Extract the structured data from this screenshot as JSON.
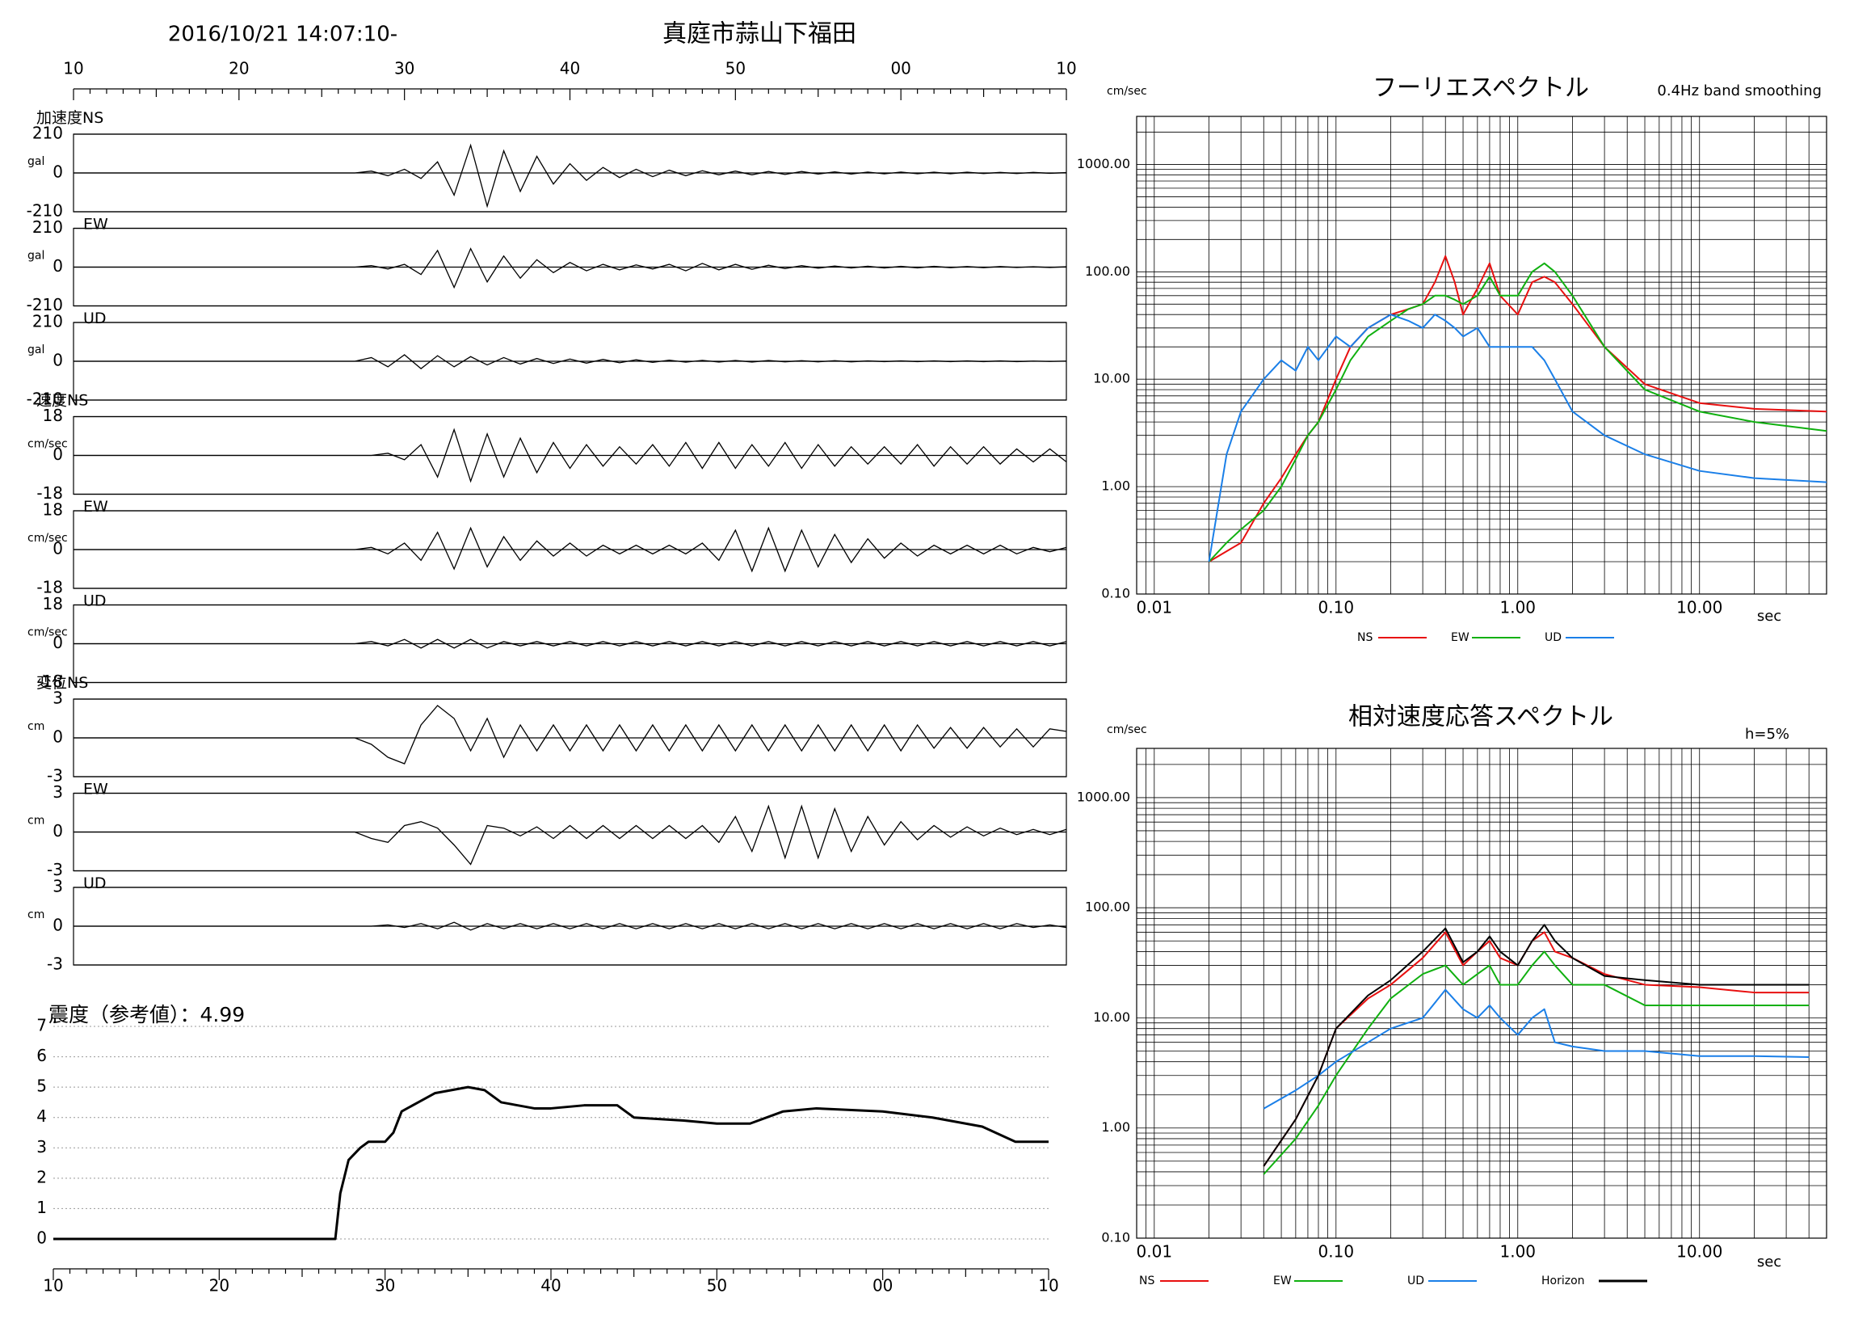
{
  "header": {
    "datetime": "2016/10/21 14:07:10-",
    "station": "真庭市蒜山下福田"
  },
  "chart_data": [
    {
      "type": "waveform",
      "color": "#000000",
      "x": [
        10,
        27,
        28,
        29,
        30,
        31,
        32,
        33,
        34,
        35,
        36,
        37,
        38,
        39,
        40,
        41,
        42,
        43,
        44,
        45,
        46,
        47,
        48,
        49,
        50,
        51,
        52,
        53,
        54,
        55,
        56,
        57,
        58,
        59,
        60,
        61,
        62,
        63,
        64,
        65,
        66,
        67,
        68,
        69,
        70
      ],
      "xlim": [
        10,
        70
      ],
      "xticks": [
        10,
        20,
        30,
        40,
        50,
        {
          "value": 60,
          "label": "00"
        },
        {
          "value": 70,
          "label": "10"
        }
      ],
      "groups": [
        {
          "quantity": "加速度",
          "unit": "gal",
          "ylim": [
            -210,
            210
          ],
          "yticks": [
            -210,
            0,
            210
          ],
          "components": [
            {
              "name": "NS",
              "values": [
                0,
                0,
                10,
                -15,
                20,
                -30,
                60,
                -120,
                150,
                -180,
                120,
                -100,
                90,
                -60,
                50,
                -40,
                30,
                -25,
                20,
                -20,
                15,
                -15,
                12,
                -10,
                10,
                -10,
                8,
                -8,
                8,
                -6,
                6,
                -6,
                5,
                -5,
                5,
                -4,
                4,
                -4,
                4,
                -3,
                3,
                -3,
                3,
                -2,
                2
              ]
            },
            {
              "name": "EW",
              "values": [
                0,
                0,
                8,
                -10,
                15,
                -40,
                90,
                -110,
                100,
                -80,
                60,
                -60,
                40,
                -30,
                25,
                -20,
                15,
                -15,
                12,
                -10,
                15,
                -20,
                20,
                -15,
                15,
                -12,
                10,
                -8,
                8,
                -6,
                6,
                -5,
                5,
                -5,
                4,
                -4,
                4,
                -3,
                3,
                -3,
                3,
                -2,
                2,
                -2,
                2
              ]
            },
            {
              "name": "UD",
              "values": [
                0,
                0,
                20,
                -30,
                35,
                -40,
                30,
                -30,
                25,
                -20,
                20,
                -15,
                15,
                -12,
                12,
                -10,
                10,
                -8,
                8,
                -6,
                6,
                -5,
                5,
                -4,
                4,
                -4,
                4,
                -3,
                3,
                -3,
                3,
                -3,
                2,
                -2,
                2,
                -2,
                2,
                -2,
                2,
                -2,
                2,
                -2,
                1,
                -1,
                1
              ]
            }
          ]
        },
        {
          "quantity": "速度",
          "unit": "cm/sec",
          "ylim": [
            -18,
            18
          ],
          "yticks": [
            -18,
            0,
            18
          ],
          "components": [
            {
              "name": "NS",
              "values": [
                0,
                0,
                0,
                1,
                -2,
                5,
                -10,
                12,
                -12,
                10,
                -10,
                8,
                -8,
                6,
                -6,
                5,
                -5,
                4,
                -4,
                5,
                -5,
                6,
                -6,
                6,
                -6,
                5,
                -5,
                6,
                -6,
                5,
                -5,
                4,
                -4,
                4,
                -4,
                5,
                -5,
                4,
                -4,
                4,
                -4,
                3,
                -3,
                3,
                -3
              ]
            },
            {
              "name": "EW",
              "values": [
                0,
                0,
                1,
                -2,
                3,
                -5,
                8,
                -9,
                10,
                -8,
                6,
                -5,
                4,
                -3,
                3,
                -3,
                2,
                -2,
                2,
                -2,
                2,
                -2,
                3,
                -5,
                9,
                -10,
                10,
                -10,
                9,
                -8,
                7,
                -6,
                5,
                -4,
                3,
                -3,
                2,
                -2,
                2,
                -2,
                2,
                -2,
                1,
                -1,
                1
              ]
            },
            {
              "name": "UD",
              "values": [
                0,
                0,
                1,
                -1,
                2,
                -2,
                2,
                -2,
                2,
                -2,
                1,
                -1,
                1,
                -1,
                1,
                -1,
                1,
                -1,
                1,
                -1,
                1,
                -1,
                1,
                -1,
                1,
                -1,
                1,
                -1,
                1,
                -1,
                1,
                -1,
                1,
                -1,
                1,
                -1,
                1,
                -1,
                1,
                -1,
                1,
                -1,
                1,
                -1,
                1
              ]
            }
          ]
        },
        {
          "quantity": "変位",
          "unit": "cm",
          "ylim": [
            -3,
            3
          ],
          "yticks": [
            -3,
            0,
            3
          ],
          "components": [
            {
              "name": "NS",
              "values": [
                0,
                0,
                -0.5,
                -1.5,
                -2,
                1,
                2.5,
                1.5,
                -1,
                1.5,
                -1.5,
                1,
                -1,
                1,
                -1,
                1,
                -1,
                1,
                -1,
                1,
                -1,
                1,
                -1,
                1,
                -1,
                1,
                -1,
                1,
                -1,
                1,
                -1,
                1,
                -1,
                1,
                -1,
                1,
                -0.8,
                0.8,
                -0.8,
                0.8,
                -0.7,
                0.7,
                -0.7,
                0.7,
                0.5
              ]
            },
            {
              "name": "EW",
              "values": [
                0,
                0,
                -0.5,
                -0.8,
                0.5,
                0.8,
                0.3,
                -1,
                -2.5,
                0.5,
                0.3,
                -0.3,
                0.4,
                -0.5,
                0.5,
                -0.5,
                0.5,
                -0.5,
                0.5,
                -0.5,
                0.5,
                -0.5,
                0.5,
                -0.8,
                1.2,
                -1.5,
                2,
                -2,
                2,
                -2,
                1.8,
                -1.5,
                1.2,
                -1,
                0.8,
                -0.6,
                0.5,
                -0.4,
                0.4,
                -0.3,
                0.3,
                -0.2,
                0.2,
                -0.2,
                0.2
              ]
            },
            {
              "name": "UD",
              "values": [
                0,
                0,
                0,
                0.1,
                -0.1,
                0.2,
                -0.2,
                0.3,
                -0.3,
                0.2,
                -0.2,
                0.2,
                -0.2,
                0.2,
                -0.2,
                0.2,
                -0.2,
                0.2,
                -0.2,
                0.2,
                -0.2,
                0.2,
                -0.2,
                0.2,
                -0.2,
                0.2,
                -0.2,
                0.2,
                -0.2,
                0.2,
                -0.2,
                0.2,
                -0.2,
                0.2,
                -0.2,
                0.2,
                -0.2,
                0.2,
                -0.2,
                0.2,
                -0.2,
                0.2,
                -0.1,
                0.1,
                -0.1
              ]
            }
          ]
        }
      ]
    },
    {
      "type": "line",
      "title": "震度（参考値）：4.99",
      "color": "#000000",
      "grid": "dotted",
      "x": [
        10,
        27,
        27.3,
        27.8,
        28.5,
        29,
        30,
        30.5,
        31,
        32,
        33,
        34,
        35,
        36,
        37,
        38,
        39,
        40,
        42,
        44,
        45,
        48,
        50,
        52,
        54,
        56,
        60,
        63,
        66,
        68,
        70
      ],
      "values": [
        0,
        0,
        1.5,
        2.6,
        3,
        3.2,
        3.2,
        3.5,
        4.2,
        4.5,
        4.8,
        4.9,
        5,
        4.9,
        4.5,
        4.4,
        4.3,
        4.3,
        4.4,
        4.4,
        4,
        3.9,
        3.8,
        3.8,
        4.2,
        4.3,
        4.2,
        4,
        3.7,
        3.2,
        3.2
      ],
      "xlim": [
        10,
        70
      ],
      "xticks": [
        10,
        20,
        30,
        40,
        50,
        {
          "value": 60,
          "label": "00"
        },
        {
          "value": 70,
          "label": "10"
        }
      ],
      "ylim": [
        0,
        7
      ],
      "yticks": [
        0,
        1,
        2,
        3,
        4,
        5,
        6,
        7
      ]
    },
    {
      "type": "line",
      "title": "フーリエスペクトル",
      "subtitle": "0.4Hz band smoothing",
      "ylabel": "cm/sec",
      "xlabel": "sec",
      "log_x": true,
      "log_y": true,
      "grid": "solid",
      "frame": true,
      "legend": "bottom",
      "xlim": [
        0.008,
        50
      ],
      "ylim": [
        0.1,
        2800
      ],
      "xticks": [
        0.01,
        {
          "value": 0.1,
          "label": "0.10"
        },
        {
          "value": 1,
          "label": "1.00"
        },
        {
          "value": 10,
          "label": "10.00"
        }
      ],
      "yticks": [
        {
          "value": 0.1,
          "label": "0.10"
        },
        {
          "value": 1,
          "label": "1.00"
        },
        {
          "value": 10,
          "label": "10.00"
        },
        {
          "value": 100,
          "label": "100.00"
        },
        {
          "value": 1000,
          "label": "1000.00"
        }
      ],
      "x": [
        0.02,
        0.025,
        0.03,
        0.04,
        0.05,
        0.06,
        0.07,
        0.08,
        0.1,
        0.12,
        0.15,
        0.2,
        0.25,
        0.3,
        0.35,
        0.4,
        0.45,
        0.5,
        0.6,
        0.7,
        0.8,
        1,
        1.2,
        1.4,
        1.6,
        2,
        3,
        5,
        10,
        20,
        50
      ],
      "series": [
        {
          "name": "NS",
          "color": "#e81010",
          "values": [
            0.2,
            0.25,
            0.3,
            0.7,
            1.2,
            2,
            3,
            4,
            10,
            20,
            30,
            40,
            45,
            50,
            80,
            140,
            80,
            40,
            70,
            120,
            60,
            40,
            80,
            90,
            80,
            50,
            20,
            9,
            6,
            5.3,
            5
          ]
        },
        {
          "name": "EW",
          "color": "#10b010",
          "values": [
            0.2,
            0.3,
            0.4,
            0.6,
            1,
            1.8,
            3,
            4,
            8,
            15,
            25,
            35,
            45,
            50,
            60,
            60,
            55,
            50,
            60,
            90,
            60,
            60,
            100,
            120,
            100,
            60,
            20,
            8,
            5,
            4,
            3.3
          ]
        },
        {
          "name": "UD",
          "color": "#1a7fe8",
          "values": [
            0.2,
            2,
            5,
            10,
            15,
            12,
            20,
            15,
            25,
            20,
            30,
            40,
            35,
            30,
            40,
            35,
            30,
            25,
            30,
            20,
            20,
            20,
            20,
            15,
            10,
            5,
            3,
            2,
            1.4,
            1.2,
            1.1
          ]
        }
      ]
    },
    {
      "type": "line",
      "title": "相対速度応答スペクトル",
      "annotation": "h=5%",
      "ylabel": "cm/sec",
      "xlabel": "sec",
      "log_x": true,
      "log_y": true,
      "grid": "solid",
      "frame": true,
      "legend": "bottom",
      "xlim": [
        0.008,
        50
      ],
      "ylim": [
        0.1,
        2800
      ],
      "xticks": [
        0.01,
        {
          "value": 0.1,
          "label": "0.10"
        },
        {
          "value": 1,
          "label": "1.00"
        },
        {
          "value": 10,
          "label": "10.00"
        }
      ],
      "yticks": [
        {
          "value": 0.1,
          "label": "0.10"
        },
        {
          "value": 1,
          "label": "1.00"
        },
        {
          "value": 10,
          "label": "10.00"
        },
        {
          "value": 100,
          "label": "100.00"
        },
        {
          "value": 1000,
          "label": "1000.00"
        }
      ],
      "x": [
        0.04,
        0.06,
        0.08,
        0.1,
        0.15,
        0.2,
        0.3,
        0.4,
        0.5,
        0.6,
        0.7,
        0.8,
        1,
        1.2,
        1.4,
        1.6,
        2,
        3,
        5,
        10,
        20,
        40
      ],
      "series": [
        {
          "name": "NS",
          "color": "#e81010",
          "values": [
            0.45,
            1.2,
            3,
            8,
            15,
            20,
            35,
            60,
            30,
            40,
            50,
            35,
            30,
            50,
            60,
            40,
            35,
            25,
            20,
            19,
            17,
            17
          ]
        },
        {
          "name": "EW",
          "color": "#10b010",
          "values": [
            0.38,
            0.8,
            1.6,
            3,
            8,
            15,
            25,
            30,
            20,
            25,
            30,
            20,
            20,
            30,
            40,
            30,
            20,
            20,
            13,
            13,
            13,
            13
          ]
        },
        {
          "name": "UD",
          "color": "#1a7fe8",
          "values": [
            1.5,
            2.2,
            3,
            4,
            6,
            8,
            10,
            18,
            12,
            10,
            13,
            10,
            7,
            10,
            12,
            6,
            5.5,
            5,
            5,
            4.5,
            4.5,
            4.4
          ]
        },
        {
          "name": "Horizon",
          "color": "#000000",
          "values": [
            0.45,
            1.2,
            3,
            8,
            16,
            22,
            40,
            65,
            32,
            40,
            55,
            40,
            30,
            50,
            70,
            50,
            35,
            24,
            22,
            20,
            20,
            20
          ]
        }
      ]
    }
  ]
}
